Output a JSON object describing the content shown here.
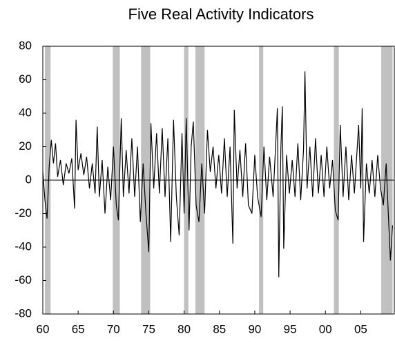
{
  "chart_data": {
    "type": "line",
    "title": "Five Real Activity Indicators",
    "xlim": [
      1960,
      2009.75
    ],
    "ylim": [
      -80,
      80
    ],
    "xticks": [
      {
        "value": 1960,
        "label": "60"
      },
      {
        "value": 1965,
        "label": "65"
      },
      {
        "value": 1970,
        "label": "70"
      },
      {
        "value": 1975,
        "label": "75"
      },
      {
        "value": 1980,
        "label": "80"
      },
      {
        "value": 1985,
        "label": "85"
      },
      {
        "value": 1990,
        "label": "90"
      },
      {
        "value": 1995,
        "label": "95"
      },
      {
        "value": 2000,
        "label": "00"
      },
      {
        "value": 2005,
        "label": "05"
      }
    ],
    "yticks": [
      -80,
      -60,
      -40,
      -20,
      0,
      20,
      40,
      60,
      80
    ],
    "recessions": [
      [
        1960.3,
        1961.1
      ],
      [
        1969.9,
        1970.9
      ],
      [
        1973.9,
        1975.2
      ],
      [
        1980.0,
        1980.6
      ],
      [
        1981.6,
        1982.9
      ],
      [
        1990.6,
        1991.2
      ],
      [
        2001.2,
        2001.9
      ],
      [
        2007.9,
        2009.5
      ]
    ],
    "recession_color": "#c0c0c0",
    "x": [
      1960.0,
      1960.3,
      1960.6,
      1960.9,
      1961.2,
      1961.5,
      1961.8,
      1962.1,
      1962.5,
      1962.9,
      1963.3,
      1963.7,
      1964.1,
      1964.5,
      1964.7,
      1965.0,
      1965.4,
      1965.8,
      1966.2,
      1966.6,
      1967.0,
      1967.4,
      1967.7,
      1968.0,
      1968.4,
      1968.8,
      1969.2,
      1969.6,
      1970.0,
      1970.4,
      1970.7,
      1971.1,
      1971.4,
      1971.8,
      1972.2,
      1972.6,
      1973.0,
      1973.4,
      1973.8,
      1974.2,
      1974.6,
      1975.0,
      1975.3,
      1975.7,
      1976.1,
      1976.5,
      1976.9,
      1977.3,
      1977.7,
      1978.1,
      1978.5,
      1978.9,
      1979.3,
      1979.7,
      1980.0,
      1980.3,
      1980.7,
      1981.0,
      1981.3,
      1981.7,
      1982.1,
      1982.5,
      1982.9,
      1983.3,
      1983.7,
      1984.1,
      1984.5,
      1984.9,
      1985.3,
      1985.7,
      1986.1,
      1986.5,
      1986.9,
      1987.1,
      1987.5,
      1987.9,
      1988.3,
      1988.7,
      1989.1,
      1989.6,
      1990.0,
      1990.4,
      1990.9,
      1991.3,
      1991.7,
      1992.1,
      1992.6,
      1993.0,
      1993.2,
      1993.4,
      1993.7,
      1993.9,
      1994.1,
      1994.5,
      1994.9,
      1995.3,
      1995.7,
      1996.1,
      1996.5,
      1996.9,
      1997.1,
      1997.4,
      1997.8,
      1998.2,
      1998.6,
      1999.0,
      1999.4,
      1999.8,
      2000.2,
      2000.6,
      2001.0,
      2001.4,
      2001.8,
      2002.1,
      2002.5,
      2002.9,
      2003.3,
      2003.7,
      2004.1,
      2004.7,
      2005.0,
      2005.2,
      2005.4,
      2005.8,
      2006.2,
      2006.6,
      2007.0,
      2007.4,
      2007.8,
      2008.2,
      2008.6,
      2008.9,
      2009.2,
      2009.5
    ],
    "series": [
      {
        "color": "#000000",
        "values": [
          5,
          -12,
          -23,
          8,
          24,
          10,
          22,
          2,
          12,
          -3,
          10,
          4,
          13,
          -17,
          36,
          6,
          16,
          3,
          14,
          -5,
          10,
          -8,
          32,
          -10,
          12,
          -20,
          8,
          -12,
          20,
          -15,
          -24,
          37,
          -10,
          18,
          -8,
          25,
          -10,
          20,
          -25,
          10,
          -20,
          -43,
          34,
          -5,
          28,
          -8,
          31,
          -10,
          25,
          -37,
          36,
          -10,
          -33,
          28,
          -20,
          37,
          -30,
          20,
          35,
          -15,
          -25,
          10,
          -20,
          30,
          5,
          20,
          -5,
          15,
          -8,
          25,
          -10,
          20,
          -38,
          42,
          -5,
          18,
          -10,
          22,
          -15,
          -20,
          15,
          -10,
          -22,
          20,
          -12,
          14,
          -10,
          25,
          43,
          -58,
          20,
          44,
          -41,
          15,
          -8,
          12,
          -10,
          22,
          -12,
          18,
          65,
          -5,
          20,
          -10,
          25,
          -8,
          15,
          -10,
          20,
          -5,
          12,
          -18,
          -24,
          33,
          -10,
          20,
          -12,
          15,
          -8,
          33,
          -5,
          43,
          -37,
          10,
          -8,
          12,
          -10,
          15,
          -5,
          -15,
          10,
          -20,
          -48,
          -27
        ]
      }
    ]
  }
}
